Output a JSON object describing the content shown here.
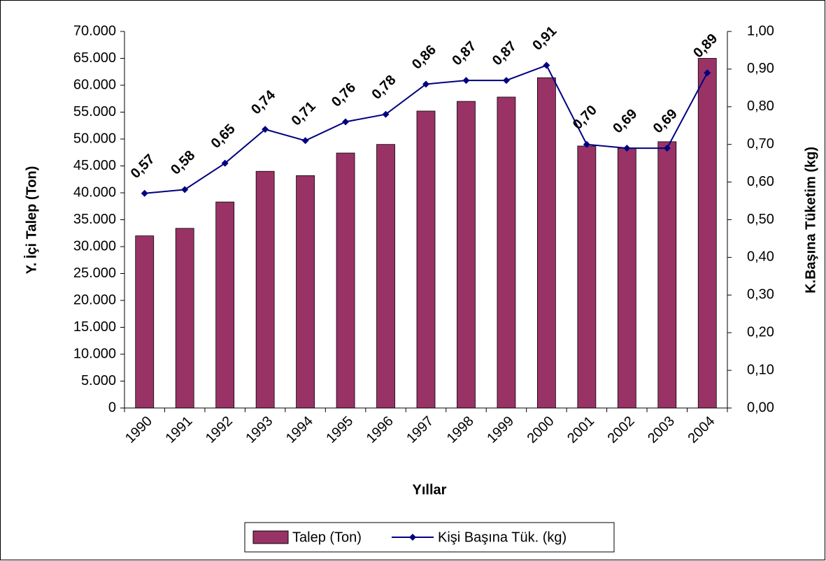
{
  "chart_data": {
    "type": "bar_line",
    "xlabel": "Yıllar",
    "ylabel": "Y. İçi Talep (Ton)",
    "y2label": "K.Başına Tüketim (kg)",
    "categories": [
      "1990",
      "1991",
      "1992",
      "1993",
      "1994",
      "1995",
      "1996",
      "1997",
      "1998",
      "1999",
      "2000",
      "2001",
      "2002",
      "2003",
      "2004"
    ],
    "series": [
      {
        "name": "Talep (Ton)",
        "type": "bar",
        "color": "#993366",
        "values": [
          32000,
          33400,
          38300,
          44000,
          43200,
          47400,
          49000,
          55200,
          57000,
          57800,
          61400,
          48700,
          48300,
          49500,
          65000
        ]
      },
      {
        "name": "Kişi Başına Tük. (kg)",
        "type": "line",
        "axis": "y2",
        "color": "#000080",
        "values": [
          0.57,
          0.58,
          0.65,
          0.74,
          0.71,
          0.76,
          0.78,
          0.86,
          0.87,
          0.87,
          0.91,
          0.7,
          0.69,
          0.69,
          0.89
        ],
        "value_labels": [
          "0,57",
          "0,58",
          "0,65",
          "0,74",
          "0,71",
          "0,76",
          "0,78",
          "0,86",
          "0,87",
          "0,87",
          "0,91",
          "0,70",
          "0,69",
          "0,69",
          "0,89"
        ]
      }
    ],
    "ylim": [
      0,
      70000
    ],
    "yticks": [
      0,
      {
        "value": 5000,
        "label": "5.000"
      },
      {
        "value": 10000,
        "label": "10.000"
      },
      {
        "value": 15000,
        "label": "15.000"
      },
      {
        "value": 20000,
        "label": "20.000"
      },
      {
        "value": 25000,
        "label": "25.000"
      },
      {
        "value": 30000,
        "label": "30.000"
      },
      {
        "value": 35000,
        "label": "35.000"
      },
      {
        "value": 40000,
        "label": "40.000"
      },
      {
        "value": 45000,
        "label": "45.000"
      },
      {
        "value": 50000,
        "label": "50.000"
      },
      {
        "value": 55000,
        "label": "55.000"
      },
      {
        "value": 60000,
        "label": "60.000"
      },
      {
        "value": 65000,
        "label": "65.000"
      },
      {
        "value": 70000,
        "label": "70.000"
      }
    ],
    "y2lim": [
      0,
      1
    ],
    "y2ticks": [
      {
        "value": 0,
        "label": "0,00"
      },
      {
        "value": 0.1,
        "label": "0,10"
      },
      {
        "value": 0.2,
        "label": "0,20"
      },
      {
        "value": 0.3,
        "label": "0,30"
      },
      {
        "value": 0.4,
        "label": "0,40"
      },
      {
        "value": 0.5,
        "label": "0,50"
      },
      {
        "value": 0.6,
        "label": "0,60"
      },
      {
        "value": 0.7,
        "label": "0,70"
      },
      {
        "value": 0.8,
        "label": "0,80"
      },
      {
        "value": 0.9,
        "label": "0,90"
      },
      {
        "value": 1,
        "label": "1,00"
      }
    ],
    "grid": false,
    "legend": "bottom"
  }
}
